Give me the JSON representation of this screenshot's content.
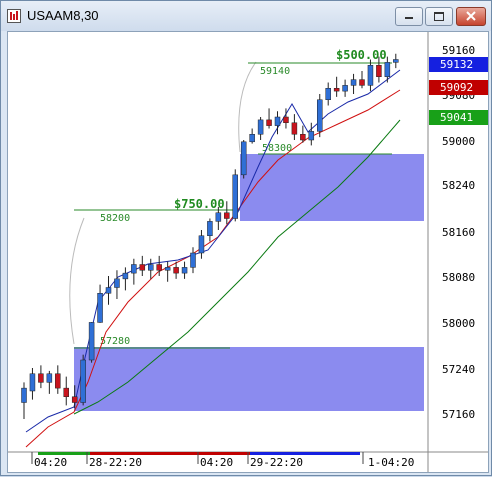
{
  "window": {
    "title": "USAAM8,30",
    "icon": "chart-app-icon",
    "buttons": [
      "minimize-icon",
      "maximize-icon",
      "close-icon"
    ]
  },
  "colors": {
    "up_candle": "#2f6fd6",
    "down_candle": "#c8141e",
    "zone_fill": "#8585ee",
    "fast_ma": "#1a2aa8",
    "mid_ma": "#d01010",
    "slow_ma": "#0a7a12",
    "level_line": "#2a8a2a",
    "profit_text": "#1f8a1f",
    "badge_blue": "#1520e0",
    "badge_red": "#c00000",
    "badge_green": "#18a018"
  },
  "price_scale": {
    "tick_labels": [
      "59160",
      "59000",
      "58240",
      "58160",
      "58080",
      "58000",
      "57240",
      "57160"
    ]
  },
  "price_badges": [
    {
      "value": "59132",
      "color": "blue"
    },
    {
      "value": "59092",
      "color": "red"
    },
    {
      "value": "59041",
      "color": "green"
    }
  ],
  "partial_label": "59080",
  "annotations": {
    "profit_top": "$500.00",
    "profit_mid": "$750.00",
    "level_59140": "59140",
    "level_58300": "58300",
    "level_58200": "58200",
    "level_57280": "57280"
  },
  "time_axis": {
    "labels": [
      "04:20",
      "28-22:20",
      "04:20",
      "29-22:20",
      "1-04:20"
    ]
  },
  "chart_data": {
    "type": "candlestick",
    "title": "USAAM8,30",
    "note": "price axis uses a broken scale (distorted levels as printed)",
    "candles": [
      {
        "o": 57180,
        "h": 57215,
        "l": 57150,
        "c": 57205,
        "dir": "up"
      },
      {
        "o": 57200,
        "h": 57240,
        "l": 57185,
        "c": 57230,
        "dir": "up"
      },
      {
        "o": 57230,
        "h": 57250,
        "l": 57205,
        "c": 57215,
        "dir": "down"
      },
      {
        "o": 57215,
        "h": 57235,
        "l": 57195,
        "c": 57230,
        "dir": "up"
      },
      {
        "o": 57230,
        "h": 57250,
        "l": 57195,
        "c": 57205,
        "dir": "down"
      },
      {
        "o": 57205,
        "h": 57225,
        "l": 57175,
        "c": 57190,
        "dir": "down"
      },
      {
        "o": 57190,
        "h": 57210,
        "l": 57170,
        "c": 57180,
        "dir": "down"
      },
      {
        "o": 57180,
        "h": 57290,
        "l": 57175,
        "c": 57270,
        "dir": "up"
      },
      {
        "o": 57270,
        "h": 58000,
        "l": 57260,
        "c": 57990,
        "dir": "up"
      },
      {
        "o": 57990,
        "h": 58065,
        "l": 57980,
        "c": 58050,
        "dir": "up"
      },
      {
        "o": 58050,
        "h": 58080,
        "l": 58030,
        "c": 58060,
        "dir": "up"
      },
      {
        "o": 58060,
        "h": 58090,
        "l": 58040,
        "c": 58075,
        "dir": "up"
      },
      {
        "o": 58075,
        "h": 58095,
        "l": 58055,
        "c": 58085,
        "dir": "up"
      },
      {
        "o": 58085,
        "h": 58110,
        "l": 58065,
        "c": 58100,
        "dir": "up"
      },
      {
        "o": 58100,
        "h": 58115,
        "l": 58080,
        "c": 58090,
        "dir": "down"
      },
      {
        "o": 58090,
        "h": 58110,
        "l": 58075,
        "c": 58100,
        "dir": "up"
      },
      {
        "o": 58100,
        "h": 58115,
        "l": 58080,
        "c": 58090,
        "dir": "down"
      },
      {
        "o": 58090,
        "h": 58105,
        "l": 58070,
        "c": 58095,
        "dir": "up"
      },
      {
        "o": 58095,
        "h": 58105,
        "l": 58075,
        "c": 58085,
        "dir": "down"
      },
      {
        "o": 58085,
        "h": 58105,
        "l": 58075,
        "c": 58095,
        "dir": "up"
      },
      {
        "o": 58095,
        "h": 58130,
        "l": 58085,
        "c": 58120,
        "dir": "up"
      },
      {
        "o": 58120,
        "h": 58160,
        "l": 58110,
        "c": 58150,
        "dir": "up"
      },
      {
        "o": 58150,
        "h": 58180,
        "l": 58140,
        "c": 58175,
        "dir": "up"
      },
      {
        "o": 58175,
        "h": 58200,
        "l": 58160,
        "c": 58190,
        "dir": "up"
      },
      {
        "o": 58190,
        "h": 58210,
        "l": 58170,
        "c": 58180,
        "dir": "down"
      },
      {
        "o": 58180,
        "h": 58280,
        "l": 58175,
        "c": 58265,
        "dir": "up"
      },
      {
        "o": 58265,
        "h": 59000,
        "l": 58255,
        "c": 58990,
        "dir": "up"
      },
      {
        "o": 58990,
        "h": 59020,
        "l": 58980,
        "c": 59010,
        "dir": "up"
      },
      {
        "o": 59010,
        "h": 59040,
        "l": 59000,
        "c": 59035,
        "dir": "up"
      },
      {
        "o": 59035,
        "h": 59055,
        "l": 59020,
        "c": 59025,
        "dir": "down"
      },
      {
        "o": 59025,
        "h": 59050,
        "l": 59010,
        "c": 59040,
        "dir": "up"
      },
      {
        "o": 59040,
        "h": 59055,
        "l": 59020,
        "c": 59030,
        "dir": "down"
      },
      {
        "o": 59030,
        "h": 59045,
        "l": 59000,
        "c": 59010,
        "dir": "down"
      },
      {
        "o": 59010,
        "h": 59025,
        "l": 58985,
        "c": 59000,
        "dir": "down"
      },
      {
        "o": 59000,
        "h": 59030,
        "l": 58970,
        "c": 59015,
        "dir": "up"
      },
      {
        "o": 59015,
        "h": 59080,
        "l": 59005,
        "c": 59070,
        "dir": "up"
      },
      {
        "o": 59070,
        "h": 59100,
        "l": 59060,
        "c": 59090,
        "dir": "up"
      },
      {
        "o": 59090,
        "h": 59110,
        "l": 59075,
        "c": 59085,
        "dir": "down"
      },
      {
        "o": 59085,
        "h": 59105,
        "l": 59075,
        "c": 59095,
        "dir": "up"
      },
      {
        "o": 59095,
        "h": 59115,
        "l": 59080,
        "c": 59105,
        "dir": "up"
      },
      {
        "o": 59105,
        "h": 59120,
        "l": 59090,
        "c": 59095,
        "dir": "down"
      },
      {
        "o": 59095,
        "h": 59140,
        "l": 59085,
        "c": 59130,
        "dir": "up"
      },
      {
        "o": 59130,
        "h": 59145,
        "l": 59100,
        "c": 59110,
        "dir": "down"
      },
      {
        "o": 59110,
        "h": 59145,
        "l": 59100,
        "c": 59135,
        "dir": "up"
      },
      {
        "o": 59135,
        "h": 59150,
        "l": 59125,
        "c": 59140,
        "dir": "up"
      }
    ]
  }
}
